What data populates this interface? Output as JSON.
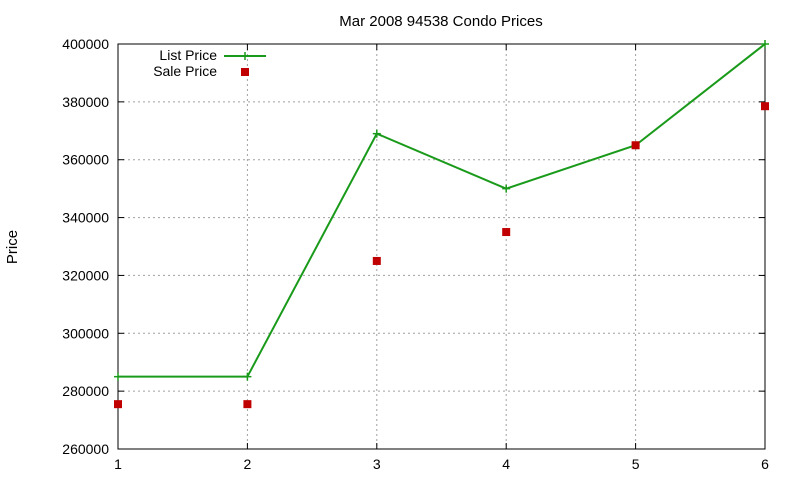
{
  "chart_data": {
    "type": "line",
    "title": "Mar 2008 94538 Condo Prices",
    "xlabel": "",
    "ylabel": "Price",
    "x": [
      1,
      2,
      3,
      4,
      5,
      6
    ],
    "xlim": [
      1,
      6
    ],
    "ylim": [
      260000,
      400000
    ],
    "xticks": [
      "1",
      "2",
      "3",
      "4",
      "5",
      "6"
    ],
    "yticks": [
      "260000",
      "280000",
      "300000",
      "320000",
      "340000",
      "360000",
      "380000",
      "400000"
    ],
    "grid": true,
    "legend_position": "top-left",
    "series": [
      {
        "name": "List Price",
        "style": "line-with-plus-markers",
        "color": "#1a9a1a",
        "values": [
          285000,
          285000,
          369000,
          350000,
          365000,
          400000
        ]
      },
      {
        "name": "Sale Price",
        "style": "square-markers",
        "color": "#c00000",
        "values": [
          275500,
          275500,
          325000,
          335000,
          365000,
          378500
        ]
      }
    ]
  }
}
